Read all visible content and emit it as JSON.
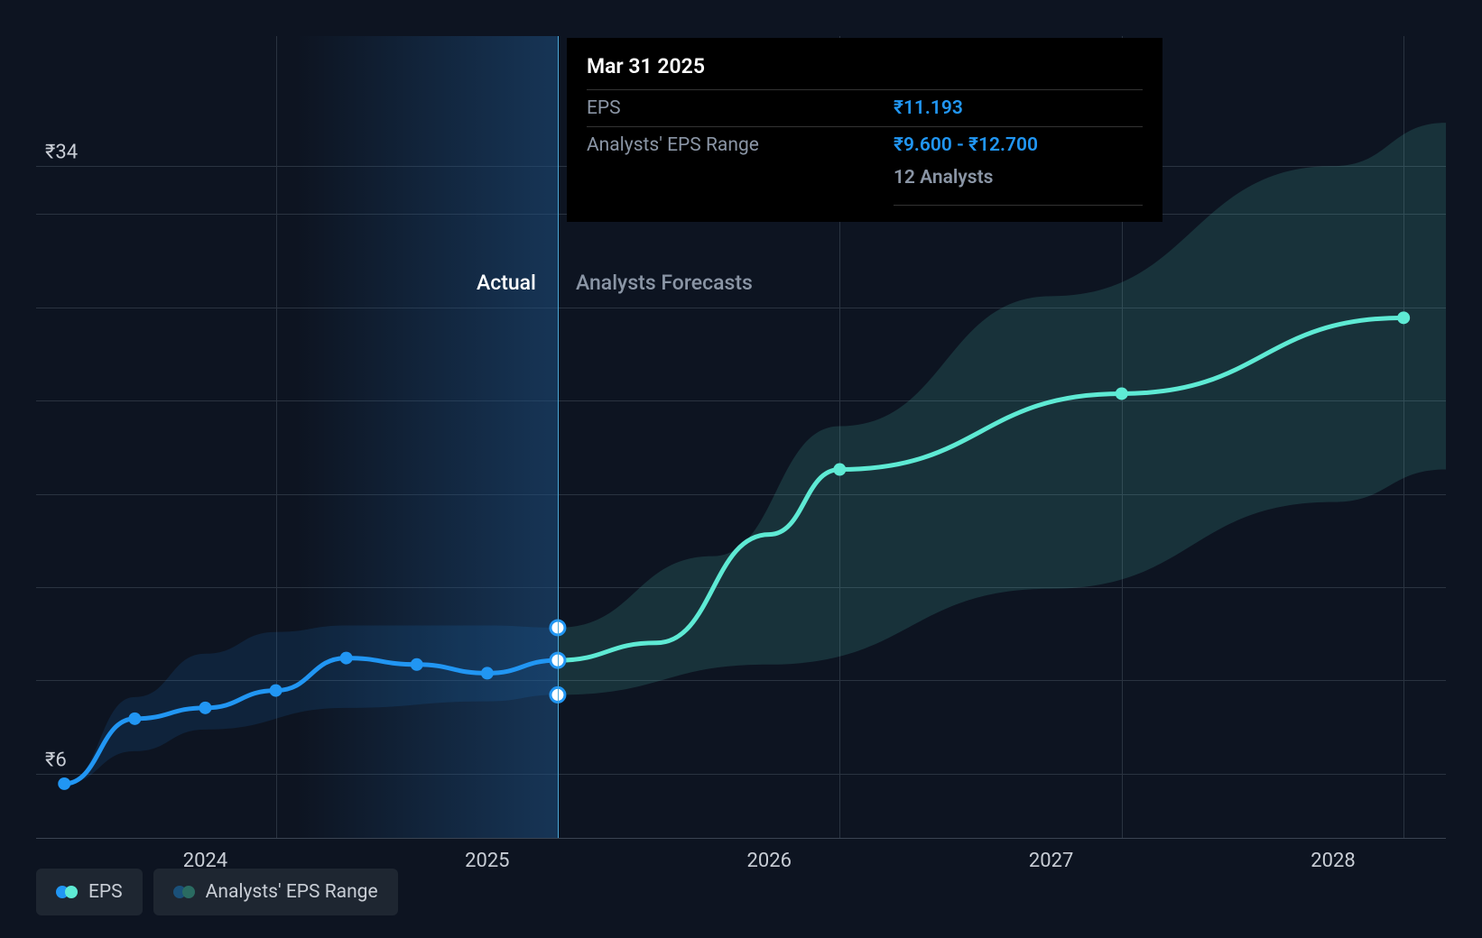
{
  "chart": {
    "type": "line-with-range",
    "background_color": "#0d1421",
    "grid_color": "#2a3340",
    "axis_line_color": "#3a4452",
    "text_color": "#c8cdd5",
    "currency_symbol": "₹",
    "x_axis": {
      "min": 2023.4,
      "max": 2028.4,
      "ticks": [
        2024,
        2025,
        2026,
        2027,
        2028
      ],
      "tick_labels": [
        "2024",
        "2025",
        "2026",
        "2027",
        "2028"
      ],
      "grid_at": [
        2024.25,
        2025.25,
        2026.25,
        2027.25,
        2028.25
      ]
    },
    "y_axis": {
      "min": 3,
      "max": 40,
      "ticks": [
        6,
        10.3,
        14.6,
        18.9,
        23.2,
        27.5,
        31.8,
        34
      ],
      "labeled_ticks": [
        {
          "value": 6,
          "label": "₹6"
        },
        {
          "value": 34,
          "label": "₹34"
        }
      ]
    },
    "divider_x": 2025.25,
    "region_labels": {
      "actual": "Actual",
      "forecast": "Analysts Forecasts"
    },
    "actual_series": {
      "color": "#2196f3",
      "line_width": 5,
      "marker_size": 7,
      "marker_fill": "#2196f3",
      "points": [
        {
          "x": 2023.5,
          "y": 5.5
        },
        {
          "x": 2023.75,
          "y": 8.5
        },
        {
          "x": 2024.0,
          "y": 9.0
        },
        {
          "x": 2024.25,
          "y": 9.8
        },
        {
          "x": 2024.5,
          "y": 11.3
        },
        {
          "x": 2024.75,
          "y": 11.0
        },
        {
          "x": 2025.0,
          "y": 10.6
        },
        {
          "x": 2025.25,
          "y": 11.193
        }
      ]
    },
    "actual_range": {
      "fill": "rgba(33,150,243,0.12)",
      "upper": [
        {
          "x": 2023.5,
          "y": 5.5
        },
        {
          "x": 2023.75,
          "y": 9.5
        },
        {
          "x": 2024.0,
          "y": 11.5
        },
        {
          "x": 2024.25,
          "y": 12.5
        },
        {
          "x": 2024.5,
          "y": 12.8
        },
        {
          "x": 2025.0,
          "y": 12.8
        },
        {
          "x": 2025.25,
          "y": 12.7
        }
      ],
      "lower": [
        {
          "x": 2023.5,
          "y": 5.5
        },
        {
          "x": 2023.75,
          "y": 7.0
        },
        {
          "x": 2024.0,
          "y": 8.0
        },
        {
          "x": 2024.5,
          "y": 9.0
        },
        {
          "x": 2025.0,
          "y": 9.3
        },
        {
          "x": 2025.25,
          "y": 9.6
        }
      ]
    },
    "forecast_series": {
      "color": "#5eead4",
      "line_width": 5,
      "marker_size": 7,
      "marker_fill": "#5eead4",
      "points": [
        {
          "x": 2025.25,
          "y": 11.193
        },
        {
          "x": 2025.6,
          "y": 12.0
        },
        {
          "x": 2026.0,
          "y": 17.0
        },
        {
          "x": 2026.25,
          "y": 20.0
        },
        {
          "x": 2027.25,
          "y": 23.5
        },
        {
          "x": 2028.25,
          "y": 27.0
        }
      ],
      "markers_at": [
        2026.25,
        2027.25,
        2028.25
      ]
    },
    "forecast_range": {
      "fill": "rgba(94,234,212,0.14)",
      "upper": [
        {
          "x": 2025.25,
          "y": 12.7
        },
        {
          "x": 2025.8,
          "y": 16.0
        },
        {
          "x": 2026.25,
          "y": 22.0
        },
        {
          "x": 2027.0,
          "y": 28.0
        },
        {
          "x": 2028.0,
          "y": 34.0
        },
        {
          "x": 2028.4,
          "y": 36.0
        }
      ],
      "lower": [
        {
          "x": 2025.25,
          "y": 9.6
        },
        {
          "x": 2026.0,
          "y": 11.0
        },
        {
          "x": 2027.0,
          "y": 14.5
        },
        {
          "x": 2028.0,
          "y": 18.5
        },
        {
          "x": 2028.4,
          "y": 20.0
        }
      ]
    },
    "range_markers": {
      "x": 2025.25,
      "values": [
        12.7,
        11.193,
        9.6
      ],
      "fill": "#ffffff",
      "stroke": "#2196f3",
      "stroke_width": 3,
      "radius": 8
    }
  },
  "tooltip": {
    "date": "Mar 31 2025",
    "rows": [
      {
        "label": "EPS",
        "value": "₹11.193"
      },
      {
        "label": "Analysts' EPS Range",
        "value": "₹9.600 - ₹12.700"
      }
    ],
    "analysts_count": "12 Analysts",
    "value_color": "#2196f3"
  },
  "legend": {
    "items": [
      {
        "label": "EPS",
        "swatch": [
          "#2196f3",
          "#5eead4"
        ]
      },
      {
        "label": "Analysts' EPS Range",
        "swatch": [
          "#1a5079",
          "#2a6b61"
        ]
      }
    ]
  }
}
